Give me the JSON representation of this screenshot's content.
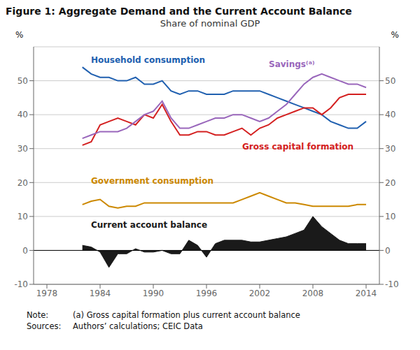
{
  "chart_data": {
    "type": "line",
    "title": "Figure 1: Aggregate Demand and the Current Account Balance",
    "subtitle": "Share of nominal GDP",
    "ylabel": "%",
    "y2label": "%",
    "notes": [
      {
        "label": "Note:",
        "text": "(a) Gross capital formation plus current account balance"
      },
      {
        "label": "Sources:",
        "text": "Authors’ calculations; CEIC Data"
      }
    ],
    "x": [
      1982,
      1983,
      1984,
      1985,
      1986,
      1987,
      1988,
      1989,
      1990,
      1991,
      1992,
      1993,
      1994,
      1995,
      1996,
      1997,
      1998,
      1999,
      2000,
      2001,
      2002,
      2003,
      2004,
      2005,
      2006,
      2007,
      2008,
      2009,
      2010,
      2011,
      2012,
      2013,
      2014
    ],
    "xlim": [
      1976.5,
      2015.5
    ],
    "xticks": [
      1978,
      1984,
      1990,
      1996,
      2002,
      2008,
      2014
    ],
    "ylim": [
      -10,
      60
    ],
    "yticks": [
      -10,
      0,
      10,
      20,
      30,
      40,
      50
    ],
    "y2lim": [
      -10,
      60
    ],
    "y2ticks": [
      -10,
      0,
      10,
      20,
      30,
      40,
      50
    ],
    "grid": true,
    "series": [
      {
        "name": "Household consumption",
        "color": "#2060b0",
        "type": "line",
        "values": [
          54,
          52,
          51,
          51,
          50,
          50,
          51,
          49,
          49,
          50,
          47,
          46,
          47,
          47,
          46,
          46,
          46,
          47,
          47,
          47,
          47,
          46,
          45,
          44,
          43,
          42,
          41,
          40,
          38,
          37,
          36,
          36,
          38
        ]
      },
      {
        "name": "Gross capital formation",
        "color": "#d42020",
        "type": "line",
        "values": [
          31,
          32,
          37,
          38,
          39,
          38,
          37,
          40,
          39,
          43,
          38,
          34,
          34,
          35,
          35,
          34,
          34,
          35,
          36,
          34,
          36,
          37,
          39,
          40,
          41,
          42,
          42,
          40,
          42,
          45,
          46,
          46,
          46
        ]
      },
      {
        "name": "Savings⁽ᵃ⁾",
        "color": "#9966bb",
        "type": "line",
        "values": [
          33,
          34,
          35,
          35,
          35,
          36,
          38,
          40,
          41,
          44,
          39,
          36,
          36,
          37,
          38,
          39,
          39,
          40,
          40,
          39,
          38,
          39,
          41,
          43,
          46,
          49,
          51,
          52,
          51,
          50,
          49,
          49,
          48
        ]
      },
      {
        "name": "Government consumption",
        "color": "#cc8800",
        "type": "line",
        "values": [
          13.5,
          14.5,
          15,
          13,
          12.5,
          13,
          13,
          14,
          14,
          14,
          14,
          14,
          14,
          14,
          14,
          14,
          14,
          14,
          15,
          16,
          17,
          16,
          15,
          14,
          14,
          13.5,
          13,
          13,
          13,
          13,
          13,
          13.5,
          13.5
        ]
      },
      {
        "name": "Current account balance",
        "color": "#1a1a1a",
        "type": "area",
        "values": [
          1.5,
          1,
          -0.5,
          -5,
          -1,
          -1,
          0.5,
          -0.5,
          -0.5,
          0,
          -1,
          -1,
          3,
          1.5,
          -2,
          2,
          3,
          3,
          3,
          2.5,
          2.5,
          3,
          3.5,
          4,
          5,
          6,
          10,
          7,
          5,
          3,
          2,
          2,
          2
        ]
      }
    ]
  }
}
